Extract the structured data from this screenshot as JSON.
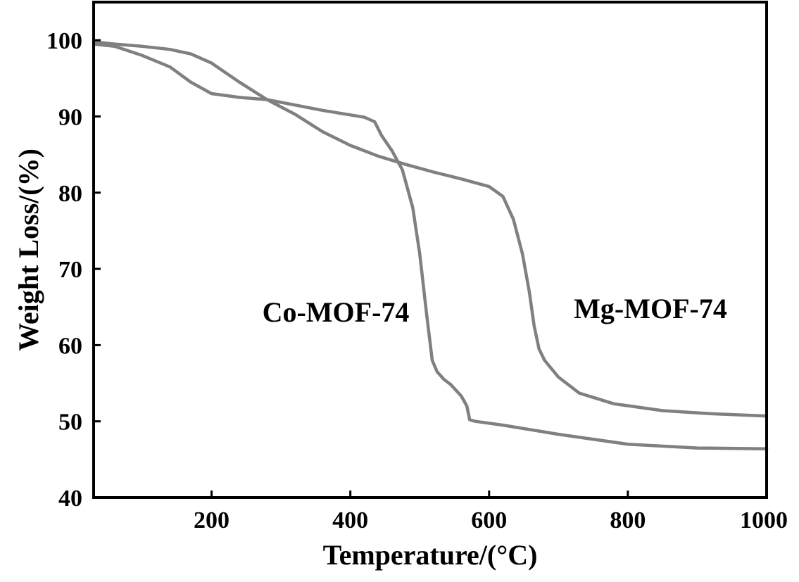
{
  "chart_data": {
    "type": "line",
    "title": "",
    "xlabel": "Temperature/(°C)",
    "ylabel": "Weight Loss/(%)",
    "xlim": [
      30,
      1000
    ],
    "ylim": [
      40,
      105
    ],
    "xticks": [
      200,
      400,
      600,
      800,
      1000
    ],
    "yticks": [
      40,
      50,
      60,
      70,
      80,
      90,
      100
    ],
    "grid": false,
    "line_color": "#808080",
    "series": [
      {
        "name": "Co-MOF-74",
        "label_position": "center",
        "x": [
          30,
          60,
          100,
          140,
          170,
          200,
          240,
          280,
          320,
          360,
          400,
          420,
          435,
          445,
          460,
          475,
          490,
          500,
          510,
          518,
          525,
          535,
          545,
          560,
          568,
          572,
          580,
          620,
          700,
          800,
          900,
          1000
        ],
        "y": [
          99.5,
          99.2,
          98.0,
          96.5,
          94.5,
          93.0,
          92.5,
          92.2,
          91.5,
          90.8,
          90.2,
          89.9,
          89.3,
          87.5,
          85.5,
          83.0,
          78.0,
          72.0,
          64.0,
          58.0,
          56.5,
          55.5,
          54.8,
          53.3,
          52.0,
          50.2,
          50.0,
          49.5,
          48.3,
          47.0,
          46.5,
          46.4
        ]
      },
      {
        "name": "Mg-MOF-74",
        "label_position": "right",
        "x": [
          30,
          60,
          100,
          140,
          170,
          200,
          240,
          280,
          320,
          360,
          400,
          440,
          480,
          520,
          560,
          600,
          620,
          635,
          648,
          658,
          665,
          672,
          680,
          700,
          730,
          780,
          850,
          920,
          1000
        ],
        "y": [
          99.8,
          99.5,
          99.2,
          98.8,
          98.2,
          97.0,
          94.5,
          92.2,
          90.3,
          88.0,
          86.2,
          84.8,
          83.7,
          82.7,
          81.8,
          80.8,
          79.5,
          76.5,
          72.0,
          67.0,
          62.5,
          59.5,
          58.0,
          55.8,
          53.7,
          52.3,
          51.4,
          51.0,
          50.7
        ]
      }
    ]
  }
}
